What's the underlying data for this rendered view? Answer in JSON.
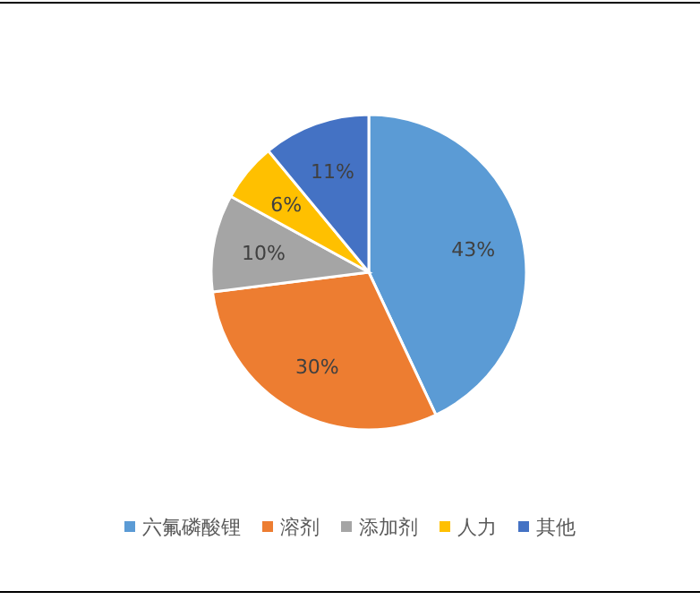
{
  "chart_data": {
    "type": "pie",
    "categories": [
      "六氟磷酸锂",
      "溶剂",
      "添加剂",
      "人力",
      "其他"
    ],
    "values": [
      43,
      30,
      10,
      6,
      11
    ],
    "colors": [
      "#5b9bd5",
      "#ed7d31",
      "#a5a5a5",
      "#ffc000",
      "#4472c4"
    ],
    "value_labels": [
      "43%",
      "30%",
      "10%",
      "6%",
      "11%"
    ],
    "legend": "bottom"
  }
}
